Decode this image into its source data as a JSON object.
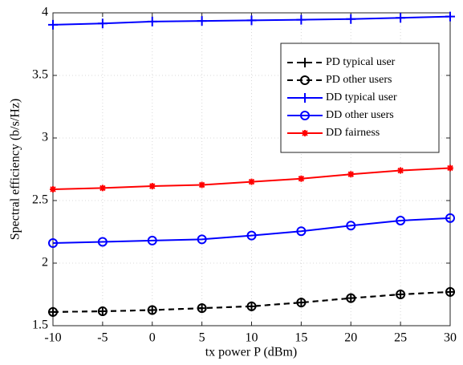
{
  "chart_data": {
    "type": "line",
    "x_label": "tx power P (dBm)",
    "y_label": "Spectral efficiency (b/s/Hz)",
    "x": [
      -10,
      -5,
      0,
      5,
      10,
      15,
      20,
      25,
      30
    ],
    "series": [
      {
        "name": "PD typical user",
        "color": "#000000",
        "linestyle": "dashed",
        "marker": "plus",
        "values": [
          1.61,
          1.615,
          1.625,
          1.64,
          1.655,
          1.685,
          1.72,
          1.75,
          1.77
        ]
      },
      {
        "name": "PD other users",
        "color": "#000000",
        "linestyle": "dashed",
        "marker": "circle",
        "values": [
          1.61,
          1.615,
          1.625,
          1.64,
          1.655,
          1.685,
          1.72,
          1.75,
          1.77
        ]
      },
      {
        "name": "DD typical user",
        "color": "#0000ff",
        "linestyle": "solid",
        "marker": "plus",
        "values": [
          3.905,
          3.915,
          3.93,
          3.935,
          3.94,
          3.945,
          3.95,
          3.96,
          3.97
        ]
      },
      {
        "name": "DD other users",
        "color": "#0000ff",
        "linestyle": "solid",
        "marker": "circle",
        "values": [
          2.16,
          2.17,
          2.18,
          2.19,
          2.22,
          2.255,
          2.3,
          2.34,
          2.36
        ]
      },
      {
        "name": "DD fairness",
        "color": "#ff0000",
        "linestyle": "solid",
        "marker": "star",
        "values": [
          2.59,
          2.6,
          2.615,
          2.625,
          2.65,
          2.675,
          2.71,
          2.74,
          2.76
        ]
      }
    ],
    "xlim": [
      -10,
      30
    ],
    "xticks": [
      -10,
      -5,
      0,
      5,
      10,
      15,
      20,
      25,
      30
    ],
    "ylim": [
      1.5,
      4
    ],
    "yticks": [
      1.5,
      2,
      2.5,
      3,
      3.5,
      4
    ],
    "grid": true,
    "legend": "upper right"
  }
}
